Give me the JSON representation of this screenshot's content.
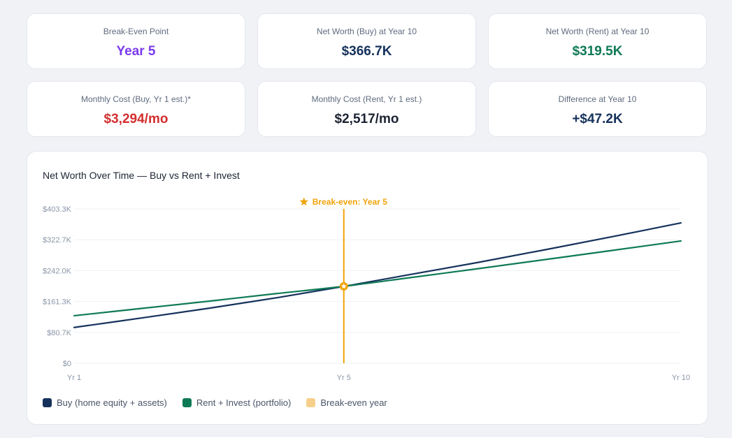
{
  "stats": [
    {
      "label": "Break-Even Point",
      "value": "Year 5",
      "color": "#7c3aed"
    },
    {
      "label": "Net Worth (Buy) at Year 10",
      "value": "$366.7K",
      "color": "#16325c"
    },
    {
      "label": "Net Worth (Rent) at Year 10",
      "value": "$319.5K",
      "color": "#0e7a55"
    },
    {
      "label": "Monthly Cost (Buy, Yr 1 est.)*",
      "value": "$3,294/mo",
      "color": "#d32f2f"
    },
    {
      "label": "Monthly Cost (Rent, Yr 1 est.)",
      "value": "$2,517/mo",
      "color": "#1c2433"
    },
    {
      "label": "Difference at Year 10",
      "value": "+$47.2K",
      "color": "#16325c"
    }
  ],
  "chart": {
    "title": "Net Worth Over Time — Buy vs Rent + Invest",
    "legend": [
      {
        "label": "Buy (home equity + assets)",
        "color": "#16325c"
      },
      {
        "label": "Rent + Invest (portfolio)",
        "color": "#0e7a55"
      },
      {
        "label": "Break-even year",
        "color": "#f6d08a"
      }
    ],
    "break_even_label": "Break-even: Year 5",
    "break_even_icon": "star-icon",
    "break_even_color": "#f0a30a"
  },
  "chart_data": {
    "type": "line",
    "x": [
      1,
      2,
      3,
      4,
      5,
      6,
      7,
      8,
      9,
      10
    ],
    "x_tick_labels": [
      {
        "x": 1,
        "label": "Yr 1"
      },
      {
        "x": 5,
        "label": "Yr 5"
      },
      {
        "x": 10,
        "label": "Yr 10"
      }
    ],
    "y_ticks": [
      0,
      80.7,
      161.3,
      242.0,
      322.7,
      403.3
    ],
    "y_tick_labels": [
      "$0",
      "$80.7K",
      "$161.3K",
      "$242.0K",
      "$322.7K",
      "$403.3K"
    ],
    "ylim": [
      0,
      403.3
    ],
    "xlim": [
      1,
      10
    ],
    "series": [
      {
        "name": "Buy (home equity + assets)",
        "color": "#16325c",
        "values": [
          93.5,
          118.3,
          143.7,
          171.0,
          200.7,
          232.3,
          263.7,
          297.0,
          331.3,
          366.7
        ]
      },
      {
        "name": "Rent + Invest (portfolio)",
        "color": "#0e7a55",
        "values": [
          124.2,
          143.2,
          162.2,
          182.0,
          201.0,
          224.0,
          247.3,
          271.2,
          295.2,
          319.5
        ]
      }
    ],
    "break_even_x": 5,
    "break_even_y": 201.0,
    "grid": true,
    "legend_position": "bottom-left"
  }
}
